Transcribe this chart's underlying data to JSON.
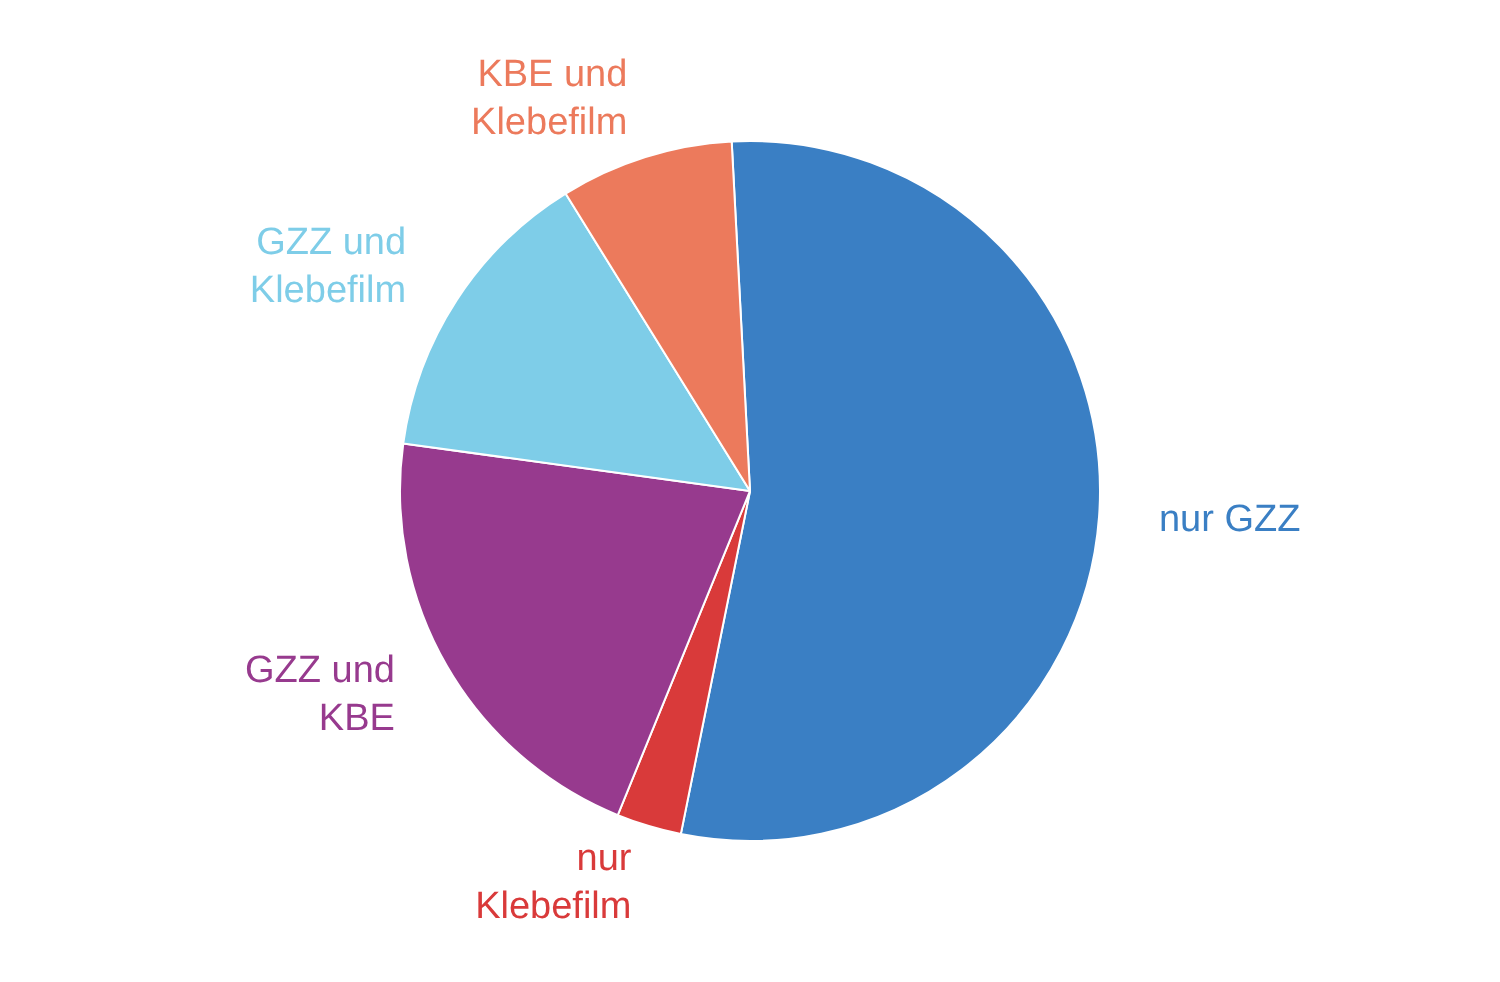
{
  "chart_data": {
    "type": "pie",
    "categories": [
      "nur GZZ",
      "nur Klebefilm",
      "GZZ und KBE",
      "GZZ und Klebefilm",
      "KBE und Klebefilm"
    ],
    "values": [
      54,
      3,
      21,
      14,
      8
    ],
    "colors": [
      "#3a7fc4",
      "#d93a3a",
      "#973a8e",
      "#7ecde8",
      "#ec7a5c"
    ],
    "legend": false
  }
}
